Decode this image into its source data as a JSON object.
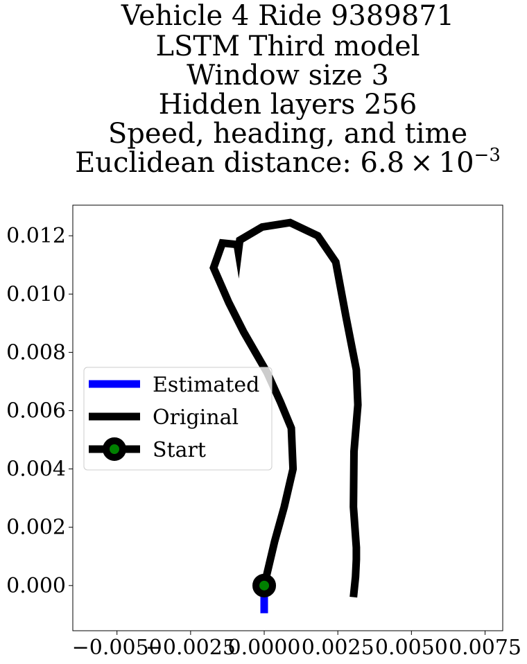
{
  "chart_data": {
    "type": "line",
    "title_lines": [
      "Vehicle 4 Ride 9389871",
      "LSTM Third model",
      "Window size 3",
      "Hidden layers 256",
      "Speed, heading, and time"
    ],
    "title_metric_prefix": "Euclidean distance: 6.8 × 10",
    "title_metric_exponent": "−3",
    "xlabel": "",
    "ylabel": "",
    "xlim": [
      -0.0065,
      0.0081
    ],
    "ylim": [
      -0.00155,
      0.01305
    ],
    "x_ticks": [
      -0.005,
      -0.0025,
      0.0,
      0.0025,
      0.005,
      0.0075
    ],
    "x_tick_labels": [
      "−0.0050",
      "−0.0025",
      "0.0000",
      "0.0025",
      "0.0050",
      "0.0075"
    ],
    "y_ticks": [
      0.0,
      0.002,
      0.004,
      0.006,
      0.008,
      0.01,
      0.012
    ],
    "y_tick_labels": [
      "0.000",
      "0.002",
      "0.004",
      "0.006",
      "0.008",
      "0.010",
      "0.012"
    ],
    "grid": false,
    "legend_position": "center-left",
    "series": [
      {
        "name": "Estimated",
        "color": "#0000ff",
        "points": [
          [
            0.0,
            0.0
          ],
          [
            0.0,
            -0.00095
          ]
        ]
      },
      {
        "name": "Original",
        "color": "#000000",
        "points": [
          [
            0.0,
            0.0
          ],
          [
            0.00035,
            0.0015
          ],
          [
            0.00068,
            0.0027
          ],
          [
            0.00098,
            0.004
          ],
          [
            0.00092,
            0.0054
          ],
          [
            0.00055,
            0.0063
          ],
          [
            0.0001,
            0.0073
          ],
          [
            -0.0007,
            0.0087
          ],
          [
            -0.0012,
            0.0097
          ],
          [
            -0.00172,
            0.0109
          ],
          [
            -0.00142,
            0.01175
          ],
          [
            -0.00092,
            0.0117
          ],
          [
            -0.00088,
            0.01145
          ],
          [
            -0.00083,
            0.01185
          ],
          [
            -7e-05,
            0.0123
          ],
          [
            0.00088,
            0.01245
          ],
          [
            0.00182,
            0.012
          ],
          [
            0.00243,
            0.0111
          ],
          [
            0.00278,
            0.0092
          ],
          [
            0.00313,
            0.0074
          ],
          [
            0.00318,
            0.0062
          ],
          [
            0.00305,
            0.0046
          ],
          [
            0.00303,
            0.0027
          ],
          [
            0.00313,
            0.0013
          ],
          [
            0.00313,
            0.0009
          ],
          [
            0.0031,
            0.0003
          ],
          [
            0.00303,
            -0.0004
          ]
        ]
      },
      {
        "name": "Start",
        "color": "#000000",
        "marker_color": "#008000",
        "points": [
          [
            0.0,
            0.0
          ]
        ]
      }
    ]
  }
}
